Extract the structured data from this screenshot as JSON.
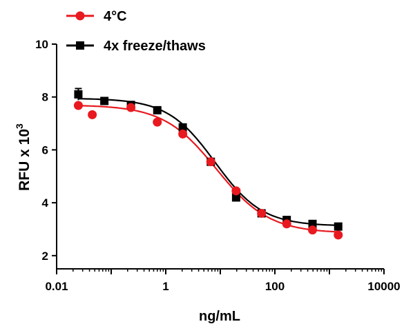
{
  "chart_data": {
    "type": "scatter",
    "xlabel": "ng/mL",
    "ylabel": "RFU x 10",
    "ylabel_superscript": "3",
    "xscale": "log",
    "xlim": [
      0.01,
      10000
    ],
    "ylim": [
      1.5,
      10
    ],
    "x_ticks": [
      0.01,
      1,
      100,
      10000
    ],
    "x_tick_labels": [
      "0.01",
      "1",
      "100",
      "10000"
    ],
    "y_ticks": [
      2,
      4,
      6,
      8,
      10
    ],
    "y_tick_labels": [
      "2",
      "4",
      "6",
      "8",
      "10"
    ],
    "legend_position": "top-left",
    "series": [
      {
        "name": "4°C",
        "color": "#e8191f",
        "marker": "circle",
        "points": [
          {
            "x": 0.025,
            "y": 7.68
          },
          {
            "x": 0.045,
            "y": 7.33
          },
          {
            "x": 0.23,
            "y": 7.6
          },
          {
            "x": 0.7,
            "y": 7.05
          },
          {
            "x": 2.05,
            "y": 6.6
          },
          {
            "x": 6.7,
            "y": 5.55
          },
          {
            "x": 19.5,
            "y": 4.45
          },
          {
            "x": 57,
            "y": 3.6
          },
          {
            "x": 165,
            "y": 3.2
          },
          {
            "x": 490,
            "y": 2.97
          },
          {
            "x": 1450,
            "y": 2.78
          }
        ],
        "fit": {
          "bottom": 2.85,
          "top": 7.7,
          "ec50": 8.5,
          "hill": 0.9
        }
      },
      {
        "name": "4x freeze/thaws",
        "color": "#000000",
        "marker": "square",
        "points": [
          {
            "x": 0.025,
            "y": 8.1,
            "err": 0.22
          },
          {
            "x": 0.075,
            "y": 7.85
          },
          {
            "x": 0.23,
            "y": 7.7
          },
          {
            "x": 0.7,
            "y": 7.5,
            "err": 0.12
          },
          {
            "x": 2.05,
            "y": 6.85
          },
          {
            "x": 6.7,
            "y": 5.55
          },
          {
            "x": 19.5,
            "y": 4.2
          },
          {
            "x": 57,
            "y": 3.6
          },
          {
            "x": 165,
            "y": 3.35
          },
          {
            "x": 490,
            "y": 3.2
          },
          {
            "x": 1450,
            "y": 3.1
          }
        ],
        "fit": {
          "bottom": 3.12,
          "top": 7.95,
          "ec50": 8.0,
          "hill": 1.0
        }
      }
    ]
  }
}
